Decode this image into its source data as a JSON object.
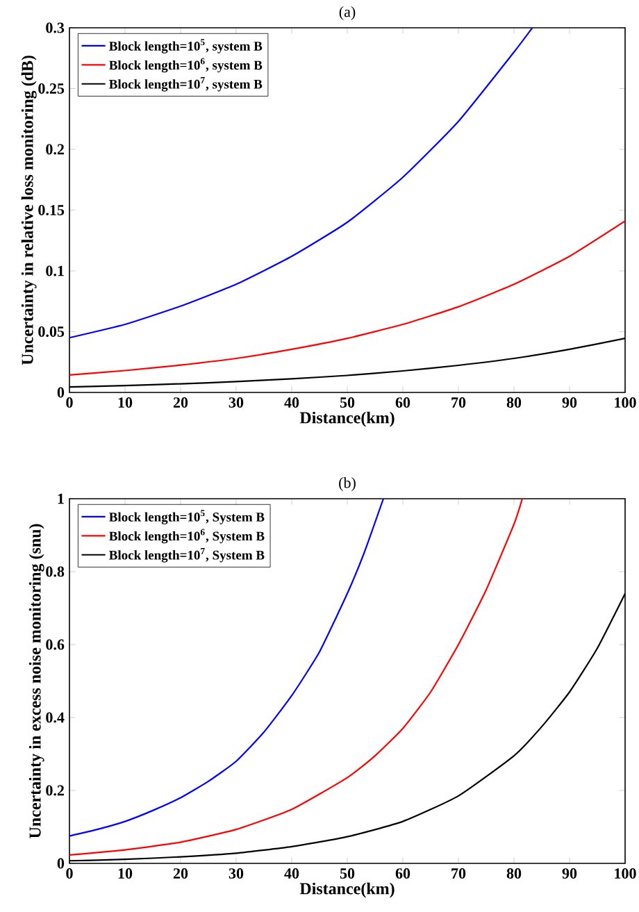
{
  "chart_data": [
    {
      "type": "line",
      "title": "(a)",
      "xlabel": "Distance(km)",
      "ylabel": "Uncertainty in relative loss monitoring (dB)",
      "xlim": [
        0,
        100
      ],
      "ylim": [
        0,
        0.3
      ],
      "xticks": [
        0,
        10,
        20,
        30,
        40,
        50,
        60,
        70,
        80,
        90,
        100
      ],
      "yticks": [
        0,
        0.05,
        0.1,
        0.15,
        0.2,
        0.25,
        0.3
      ],
      "legend": "top left",
      "grid": false,
      "marker": "none",
      "line_style": "solid",
      "series": [
        {
          "name": "Block length=10$^{5}$, system B",
          "color": "#0000ff",
          "x": [
            0,
            10,
            20,
            30,
            40,
            50,
            60,
            70,
            80,
            83.3
          ],
          "values": [
            0.045,
            0.056,
            0.071,
            0.089,
            0.112,
            0.14,
            0.177,
            0.223,
            0.28,
            0.3
          ]
        },
        {
          "name": "Block length=10$^{6}$, system B",
          "color": "#ff0000",
          "x": [
            0,
            10,
            20,
            30,
            40,
            50,
            60,
            70,
            80,
            90,
            100
          ],
          "values": [
            0.0143,
            0.018,
            0.0225,
            0.028,
            0.0355,
            0.0445,
            0.056,
            0.0705,
            0.089,
            0.112,
            0.141
          ]
        },
        {
          "name": "Block length=10$^{7}$, system B",
          "color": "#000000",
          "x": [
            0,
            10,
            20,
            30,
            40,
            50,
            60,
            70,
            80,
            90,
            100
          ],
          "values": [
            0.0045,
            0.0056,
            0.0071,
            0.0089,
            0.0112,
            0.014,
            0.0177,
            0.0223,
            0.028,
            0.0355,
            0.0445
          ]
        }
      ]
    },
    {
      "type": "line",
      "title": "(b)",
      "xlabel": "Distance(km)",
      "ylabel": "Uncertainty in excess noise monitoring (snu)",
      "xlim": [
        0,
        100
      ],
      "ylim": [
        0,
        1
      ],
      "xticks": [
        0,
        10,
        20,
        30,
        40,
        50,
        60,
        70,
        80,
        90,
        100
      ],
      "yticks": [
        0,
        0.2,
        0.4,
        0.6,
        0.8,
        1
      ],
      "legend": "top left",
      "grid": false,
      "marker": "none",
      "line_style": "solid",
      "series": [
        {
          "name": "Block length=10$^{5}$, System B",
          "color": "#0000ff",
          "x": [
            0,
            5,
            10,
            15,
            20,
            25,
            30,
            35,
            40,
            45,
            50,
            53,
            56.5
          ],
          "values": [
            0.075,
            0.093,
            0.115,
            0.145,
            0.18,
            0.225,
            0.28,
            0.36,
            0.46,
            0.58,
            0.74,
            0.85,
            1.0
          ]
        },
        {
          "name": "Block length=10$^{6}$, System B",
          "color": "#ff0000",
          "x": [
            0,
            10,
            20,
            30,
            40,
            50,
            55,
            60,
            65,
            70,
            75,
            80,
            81.5
          ],
          "values": [
            0.023,
            0.037,
            0.058,
            0.093,
            0.148,
            0.235,
            0.295,
            0.37,
            0.47,
            0.6,
            0.75,
            0.93,
            1.0
          ]
        },
        {
          "name": "Block length=10$^{7}$, System B",
          "color": "#000000",
          "x": [
            0,
            10,
            20,
            30,
            40,
            50,
            60,
            70,
            80,
            85,
            90,
            95,
            100
          ],
          "values": [
            0.007,
            0.011,
            0.018,
            0.028,
            0.046,
            0.073,
            0.115,
            0.185,
            0.295,
            0.375,
            0.47,
            0.59,
            0.74
          ]
        }
      ]
    }
  ]
}
